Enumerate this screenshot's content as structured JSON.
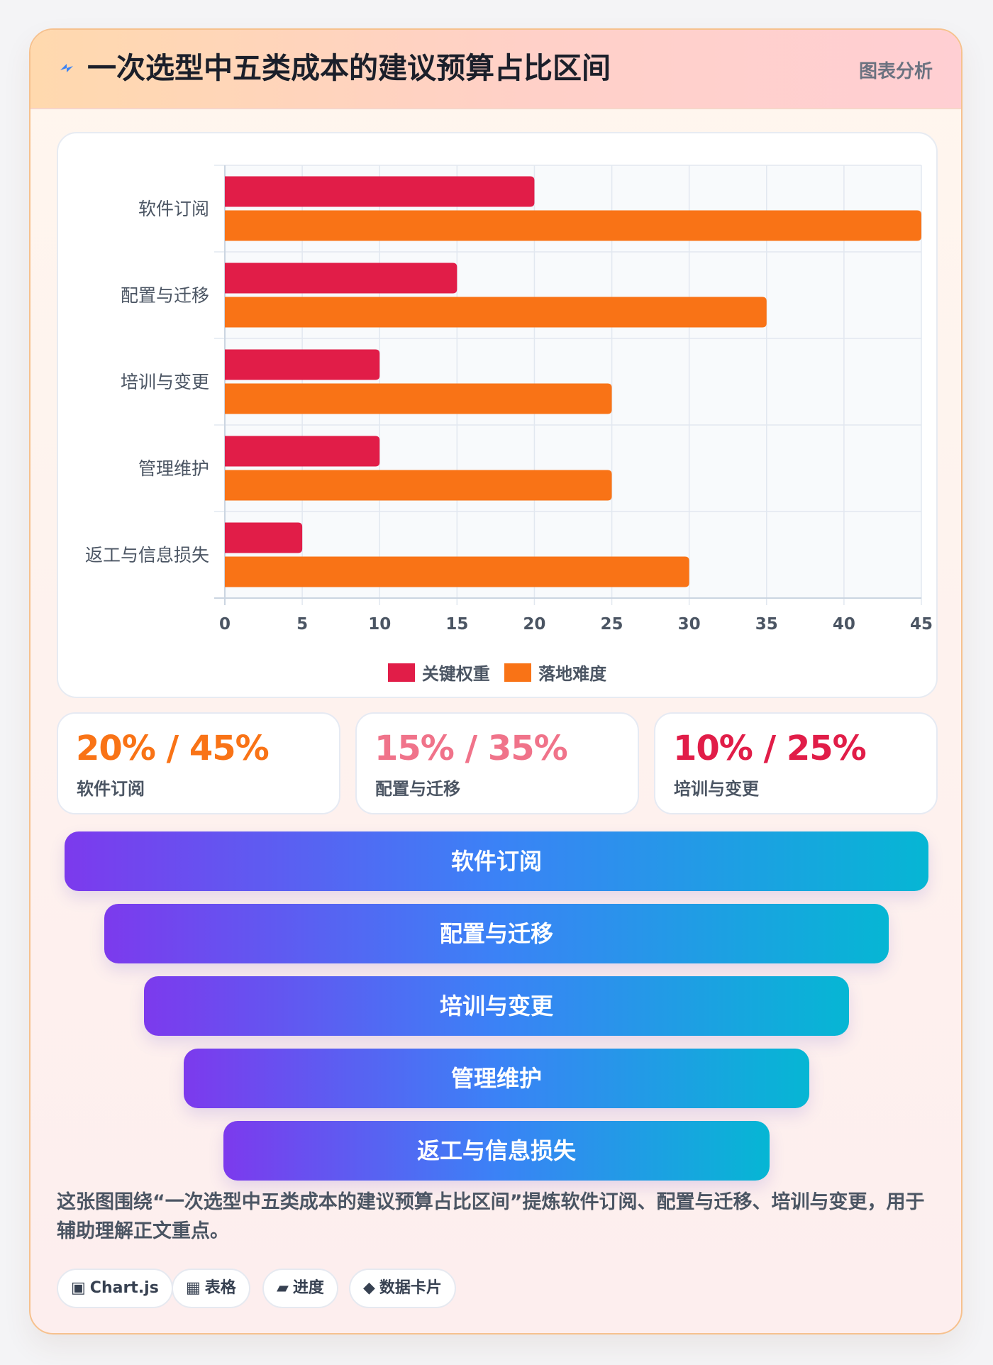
{
  "header": {
    "title": "一次选型中五类成本的建议预算占比区间",
    "tag": "图表分析",
    "icon": "lightning-icon",
    "icon_color": "#3b82f6"
  },
  "chart_data": {
    "type": "bar",
    "orientation": "horizontal",
    "categories": [
      "软件订阅",
      "配置与迁移",
      "培训与变更",
      "管理维护",
      "返工与信息损失"
    ],
    "series": [
      {
        "name": "关键权重",
        "values": [
          20,
          15,
          10,
          10,
          5
        ],
        "color": "#e11d48"
      },
      {
        "name": "落地难度",
        "values": [
          45,
          35,
          25,
          25,
          30
        ],
        "color": "#f97316"
      }
    ],
    "xlim": [
      0,
      45
    ],
    "xticks": [
      0,
      5,
      10,
      15,
      20,
      25,
      30,
      35,
      40,
      45
    ],
    "grid": true,
    "legend_position": "bottom"
  },
  "stats": [
    {
      "value": "20% / 45%",
      "label": "软件订阅",
      "color": "#f97316"
    },
    {
      "value": "15% / 35%",
      "label": "配置与迁移",
      "color": "#f0738a"
    },
    {
      "value": "10% / 25%",
      "label": "培训与变更",
      "color": "#e11d48"
    }
  ],
  "funnel": [
    "软件订阅",
    "配置与迁移",
    "培训与变更",
    "管理维护",
    "返工与信息损失"
  ],
  "description": "这张图围绕“一次选型中五类成本的建议预算占比区间”提炼软件订阅、配置与迁移、培训与变更，用于辅助理解正文重点。",
  "chips": [
    {
      "icon": "▣",
      "icon_name": "chart-icon",
      "label": "Chart.js"
    },
    {
      "icon": "▦",
      "icon_name": "table-icon",
      "label": "表格"
    },
    {
      "icon": "▰",
      "icon_name": "progress-icon",
      "label": "进度"
    },
    {
      "icon": "◆",
      "icon_name": "diamond-icon",
      "label": "数据卡片"
    }
  ]
}
